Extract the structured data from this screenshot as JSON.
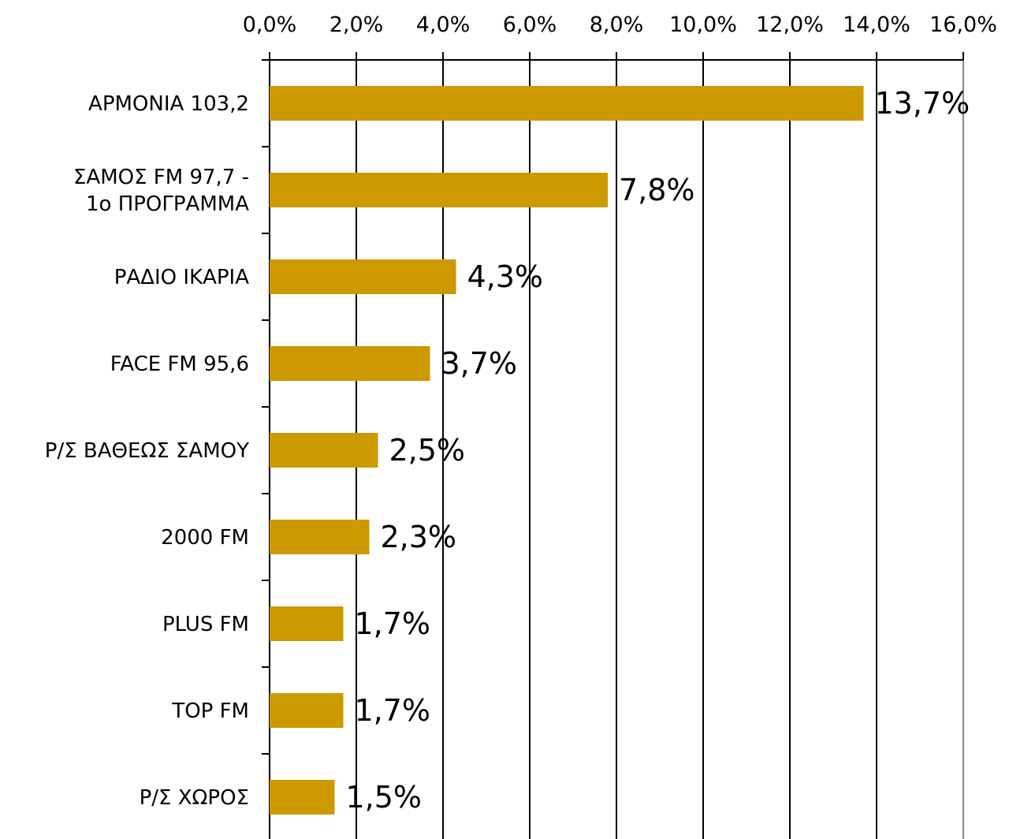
{
  "chart_data": {
    "type": "bar",
    "orientation": "horizontal",
    "categories": [
      "ΑΡΜΟΝΙΑ 103,2",
      "ΣΑΜΟΣ FM 97,7 -\n1ο ΠΡΟΓΡΑΜΜΑ",
      "ΡΑΔΙΟ ΙΚΑΡΙΑ",
      "FACE FM 95,6",
      "Ρ/Σ ΒΑΘΕΩΣ ΣΑΜΟΥ",
      "2000 FM",
      "PLUS FM",
      "TOP FM",
      "Ρ/Σ ΧΩΡΟΣ"
    ],
    "values": [
      13.7,
      7.8,
      4.3,
      3.7,
      2.5,
      2.3,
      1.7,
      1.7,
      1.5
    ],
    "value_labels": [
      "13,7%",
      "7,8%",
      "4,3%",
      "3,7%",
      "2,5%",
      "2,3%",
      "1,7%",
      "1,7%",
      "1,5%"
    ],
    "color": "#cc9900",
    "xlim": [
      0,
      16
    ],
    "xticks": [
      {
        "value": 0,
        "label": "0,0%"
      },
      {
        "value": 2,
        "label": "2,0%"
      },
      {
        "value": 4,
        "label": "4,0%"
      },
      {
        "value": 6,
        "label": "6,0%"
      },
      {
        "value": 8,
        "label": "8,0%"
      },
      {
        "value": 10,
        "label": "10,0%"
      },
      {
        "value": 12,
        "label": "12,0%"
      },
      {
        "value": 14,
        "label": "14,0%"
      },
      {
        "value": 16,
        "label": "16,0%"
      }
    ],
    "grid": true
  }
}
